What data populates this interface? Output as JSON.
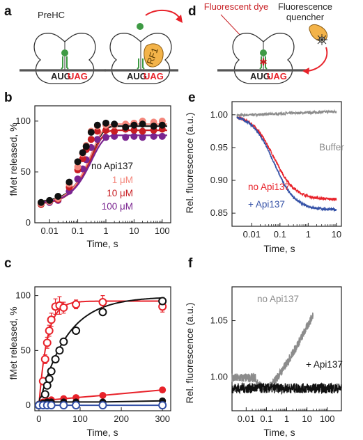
{
  "panel_labels": {
    "a": "a",
    "b": "b",
    "c": "c",
    "d": "d",
    "e": "e",
    "f": "f"
  },
  "schematic_a": {
    "complex_label": "PreHC",
    "codon_start": "AUG",
    "codon_stop": "UAG",
    "factor_label": "RF1"
  },
  "schematic_d": {
    "dye_label": "Fluorescent dye",
    "quencher_label_1": "Fluorescence",
    "quencher_label_2": "quencher",
    "codon_start": "AUG",
    "codon_stop": "UAG"
  },
  "colors": {
    "black": "#111111",
    "gray": "#8c8c8c",
    "red": "#e8222a",
    "salmon": "#f4877c",
    "dark_red": "#c81e23",
    "purple": "#7a2590",
    "blue": "#3350a6",
    "green": "#3e9a44",
    "orange": "#f3b349"
  },
  "chart_data": [
    {
      "panel": "b",
      "type": "scatter",
      "x_scale": "log",
      "xlabel": "Time, s",
      "ylabel": "fMet released, %",
      "xlim": [
        0.003,
        200
      ],
      "ylim": [
        0,
        115
      ],
      "xticks": [
        0.01,
        0.1,
        1,
        10,
        100
      ],
      "xtick_labels": [
        "0.01",
        "0.1",
        "1",
        "10",
        "100"
      ],
      "yticks": [
        0,
        50,
        100
      ],
      "ytick_labels": [
        "0",
        "50",
        "100"
      ],
      "x": [
        0.005,
        0.01,
        0.02,
        0.05,
        0.1,
        0.15,
        0.2,
        0.3,
        0.5,
        1,
        2,
        5,
        10,
        20,
        50,
        100
      ],
      "series": [
        {
          "name": "no Api137",
          "color": "#111111",
          "values": [
            20,
            22,
            26,
            40,
            60,
            69,
            75,
            89,
            96,
            98,
            97,
            94,
            96,
            97,
            95,
            96
          ],
          "fit_plateau": 95
        },
        {
          "name": "1 μM",
          "color": "#f4877c",
          "values": [
            19,
            21,
            24,
            38,
            55,
            68,
            76,
            90,
            95,
            96,
            96,
            97,
            98,
            100,
            99,
            100
          ],
          "fit_plateau": 97
        },
        {
          "name": "10 μM",
          "color": "#c81e23",
          "values": [
            18,
            21,
            23,
            35,
            52,
            63,
            72,
            82,
            90,
            91,
            90,
            92,
            91,
            90,
            91,
            92
          ],
          "fit_plateau": 91
        },
        {
          "name": "100 μM",
          "color": "#7a2590",
          "values": [
            19,
            20,
            22,
            31,
            43,
            53,
            62,
            74,
            82,
            84,
            85,
            84,
            85,
            84,
            85,
            85
          ],
          "fit_plateau": 86
        }
      ]
    },
    {
      "panel": "c",
      "type": "scatter",
      "x_scale": "linear",
      "xlabel": "Time, s",
      "ylabel": "fMet released, %",
      "xlim": [
        -10,
        320
      ],
      "ylim": [
        -5,
        108
      ],
      "xticks": [
        0,
        100,
        200,
        300
      ],
      "xtick_labels": [
        "0",
        "100",
        "200",
        "300"
      ],
      "yticks": [
        0,
        50,
        100
      ],
      "ytick_labels": [
        "0",
        "50",
        "100"
      ],
      "series": [
        {
          "marker": "open",
          "color": "#e8222a",
          "x": [
            0,
            10,
            15,
            20,
            25,
            30,
            40,
            50,
            60,
            90,
            155,
            300
          ],
          "y": [
            0,
            22,
            42,
            57,
            68,
            78,
            90,
            91,
            89,
            92,
            94,
            90
          ],
          "err": [
            0,
            3,
            4,
            5,
            5,
            6,
            7,
            8,
            5,
            4,
            6,
            5
          ],
          "fit_k": 0.05,
          "fit_max": 95
        },
        {
          "marker": "open",
          "color": "#111111",
          "x": [
            0,
            10,
            15,
            20,
            25,
            30,
            40,
            50,
            60,
            90,
            155,
            300
          ],
          "y": [
            0,
            5,
            10,
            18,
            24,
            31,
            42,
            50,
            58,
            68,
            85,
            95
          ],
          "err": [
            0,
            0,
            0,
            0,
            0,
            0,
            0,
            0,
            0,
            0,
            0,
            0
          ],
          "fit_k": 0.015,
          "fit_max": 99
        },
        {
          "marker": "filled",
          "color": "#e8222a",
          "x": [
            0,
            10,
            20,
            30,
            60,
            90,
            155,
            300
          ],
          "y": [
            1,
            3,
            4,
            5,
            6,
            7,
            9,
            14
          ],
          "err": [
            0,
            0,
            0,
            0,
            0,
            0,
            0,
            2
          ]
        },
        {
          "marker": "filled",
          "color": "#111111",
          "x": [
            0,
            10,
            20,
            30,
            60,
            90,
            155,
            300
          ],
          "y": [
            1,
            2,
            3,
            3,
            3,
            3,
            3,
            4
          ],
          "err": [
            0,
            0,
            0,
            0,
            0,
            0,
            0,
            0
          ]
        },
        {
          "marker": "open",
          "color": "#3350a6",
          "x": [
            0,
            10,
            20,
            30,
            60,
            90,
            155,
            300
          ],
          "y": [
            0,
            0,
            0,
            0,
            0,
            0,
            0,
            0
          ],
          "err": [
            0,
            0,
            0,
            0,
            0,
            0,
            0,
            0
          ]
        }
      ]
    },
    {
      "panel": "e",
      "type": "line",
      "x_scale": "log",
      "xlabel": "Time, s",
      "ylabel": "Rel. fluorescence (a.u.)",
      "xlim": [
        0.002,
        15
      ],
      "ylim": [
        0.83,
        1.02
      ],
      "xticks": [
        0.01,
        0.1,
        1,
        10
      ],
      "xtick_labels": [
        "0.01",
        "0.1",
        "1",
        "10"
      ],
      "yticks": [
        0.85,
        0.9,
        0.95,
        1.0
      ],
      "ytick_labels": [
        "0.85",
        "0.90",
        "0.95",
        "1.00"
      ],
      "series": [
        {
          "name": "Buffer",
          "color": "#8c8c8c",
          "start": 0.999,
          "end": 1.005
        },
        {
          "name": "no Api137",
          "color": "#e8222a",
          "start": 1.0,
          "end": 0.871,
          "midpoint": 0.06
        },
        {
          "name": "+ Api137",
          "color": "#3350a6",
          "start": 1.0,
          "end": 0.855,
          "midpoint": 0.06
        }
      ]
    },
    {
      "panel": "f",
      "type": "line",
      "x_scale": "log",
      "xlabel": "Time, s",
      "ylabel": "Rel. fluorescence (a.u.)",
      "xlim": [
        0.002,
        500
      ],
      "ylim": [
        0.97,
        1.08
      ],
      "xticks": [
        0.01,
        0.1,
        1,
        10,
        100
      ],
      "xtick_labels": [
        "0.01",
        "0.1",
        "1",
        "10",
        "100"
      ],
      "yticks": [
        1.0,
        1.05
      ],
      "ytick_labels": [
        "1.00",
        "1.05"
      ],
      "series": [
        {
          "name": "no Api137",
          "color": "#8c8c8c",
          "x_end": 20,
          "rise_start": 0.1,
          "end": 1.055
        },
        {
          "name": "+ Api137",
          "color": "#111111",
          "x_end": 500,
          "level": 0.99
        }
      ]
    }
  ]
}
